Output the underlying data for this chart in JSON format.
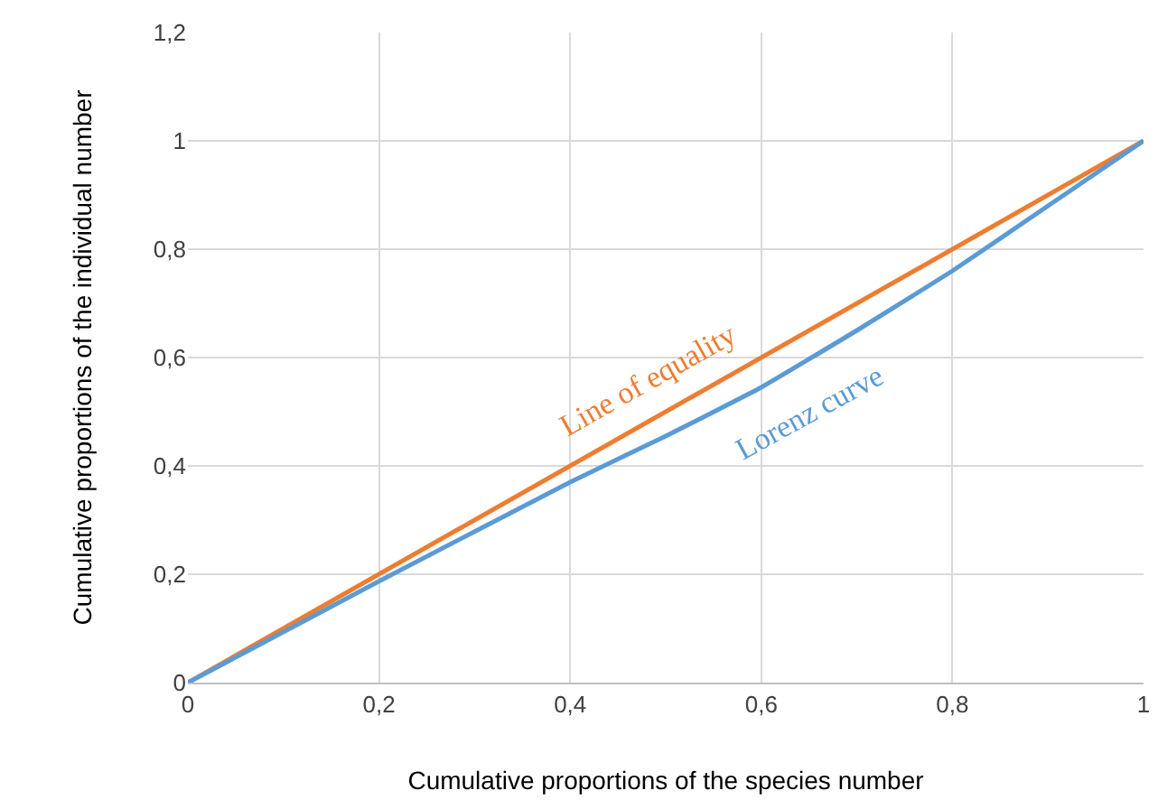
{
  "chart_data": {
    "type": "line",
    "xlabel": "Cumulative proportions of the species number",
    "ylabel": "Cumulative proportions of the individual number",
    "xlim": [
      0,
      1
    ],
    "ylim": [
      0,
      1.2
    ],
    "xticks": [
      0,
      {
        "value": 0.2,
        "label": "0,2"
      },
      {
        "value": 0.4,
        "label": "0,4"
      },
      {
        "value": 0.6,
        "label": "0,6"
      },
      {
        "value": 0.8,
        "label": "0,8"
      },
      1
    ],
    "yticks": [
      0,
      {
        "value": 0.2,
        "label": "0,2"
      },
      {
        "value": 0.4,
        "label": "0,4"
      },
      {
        "value": 0.6,
        "label": "0,6"
      },
      {
        "value": 0.8,
        "label": "0,8"
      },
      1,
      {
        "value": 1.2,
        "label": "1,2"
      }
    ],
    "grid": true,
    "legend": false,
    "marker": "none",
    "line_style": "solid",
    "series": [
      {
        "name": "Line of equality",
        "color": "#ed7d31",
        "x": [
          0,
          1
        ],
        "values": [
          0,
          1
        ]
      },
      {
        "name": "Lorenz curve",
        "color": "#5b9bd5",
        "x": [
          0,
          0.2,
          0.4,
          0.5,
          0.6,
          0.7,
          0.8,
          0.9,
          1
        ],
        "values": [
          0,
          0.187,
          0.37,
          0.455,
          0.545,
          0.65,
          0.76,
          0.88,
          1
        ]
      }
    ]
  }
}
